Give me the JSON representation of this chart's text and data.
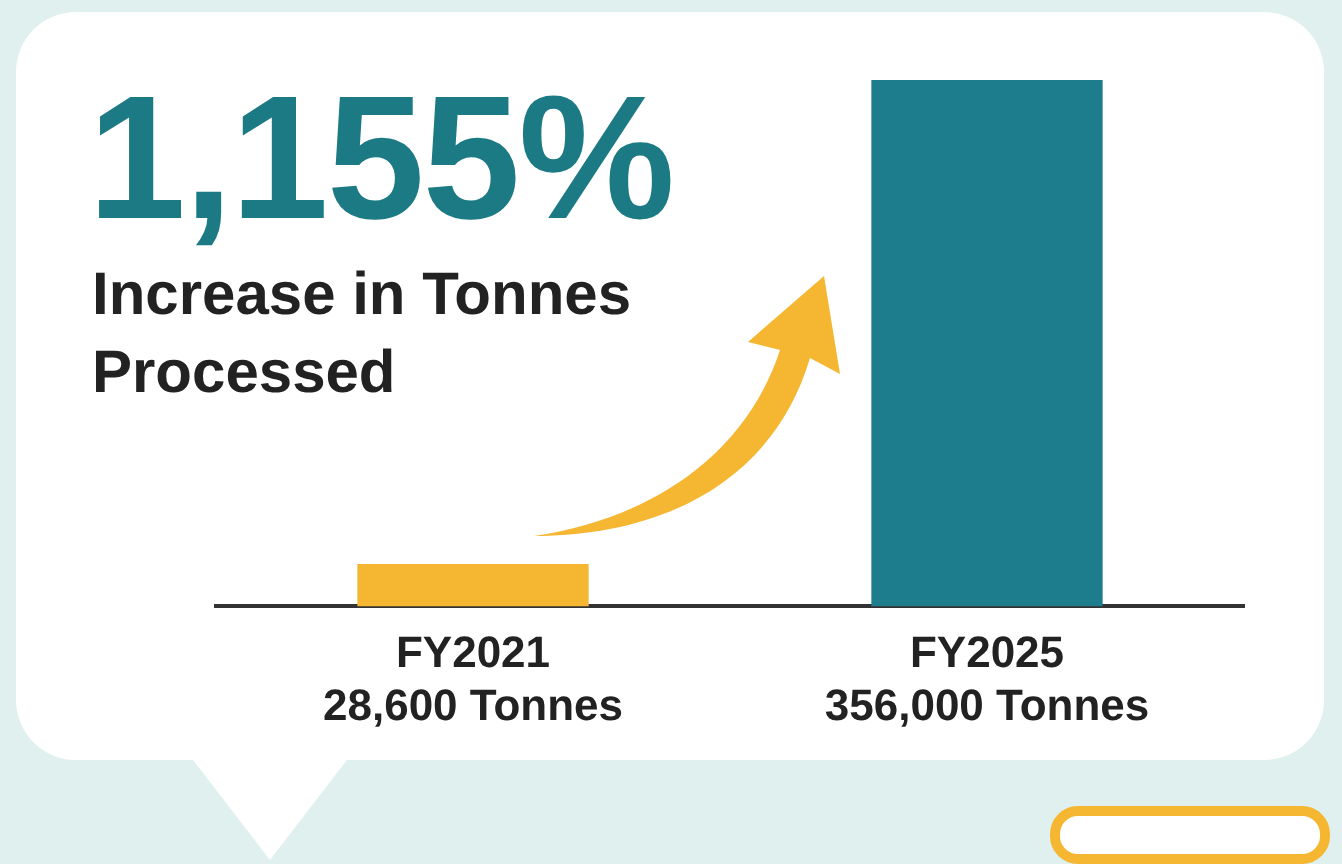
{
  "chart_data": {
    "type": "bar",
    "title": "1,155%",
    "subtitle": "Increase in Tonnes Processed",
    "categories": [
      "FY2021",
      "FY2025"
    ],
    "values": [
      28600,
      356000
    ],
    "value_labels": [
      "28,600 Tonnes",
      "356,000 Tonnes"
    ],
    "colors": [
      "#f5b731",
      "#1e7d8c"
    ],
    "ylim": [
      0,
      356000
    ]
  }
}
